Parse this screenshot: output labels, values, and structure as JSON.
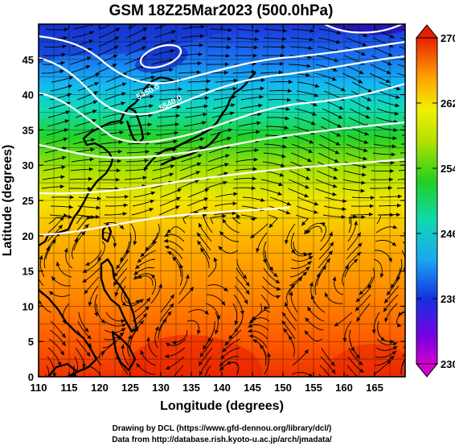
{
  "chart_data": {
    "type": "heatmap",
    "title": "GSM 18Z25Mar2023 (500.0hPa)",
    "xlabel": "Longitude (degrees)",
    "ylabel": "Latitude  (degrees)",
    "xlim": [
      110,
      170
    ],
    "ylim": [
      0,
      50
    ],
    "xticks": [
      "110",
      "115",
      "120",
      "125",
      "130",
      "135",
      "140",
      "145",
      "150",
      "155",
      "160",
      "165"
    ],
    "yticks": [
      "0",
      "5",
      "10",
      "15",
      "20",
      "25",
      "30",
      "35",
      "40",
      "45"
    ],
    "grid": true,
    "colorbar": {
      "range": [
        230,
        270
      ],
      "ticks": [
        "230",
        "238",
        "246",
        "254",
        "262",
        "270"
      ],
      "placement": "right"
    },
    "contour_labels": [
      "5450.0",
      "5540.0"
    ],
    "layers": [
      "shaded temperature",
      "streamlines",
      "height contours",
      "coastlines"
    ]
  },
  "credits": {
    "line1": "Drawing by DCL (https://www.gfd-dennou.org/library/dcl/)",
    "line2": "Data from http://database.rish.kyoto-u.ac.jp/arch/jmadata/"
  }
}
